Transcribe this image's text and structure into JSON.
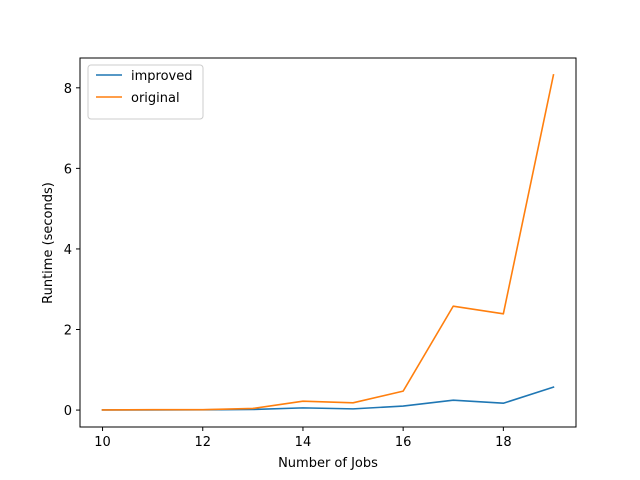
{
  "chart_data": {
    "type": "line",
    "title": "",
    "xlabel": "Number of Jobs",
    "ylabel": "Runtime (seconds)",
    "x": [
      10,
      11,
      12,
      13,
      14,
      15,
      16,
      17,
      18,
      19
    ],
    "series": [
      {
        "name": "improved",
        "color": "#1f77b4",
        "values": [
          0.003,
          0.004,
          0.006,
          0.015,
          0.055,
          0.03,
          0.1,
          0.245,
          0.17,
          0.57
        ]
      },
      {
        "name": "original",
        "color": "#ff7f0e",
        "values": [
          0.004,
          0.01,
          0.01,
          0.04,
          0.22,
          0.18,
          0.47,
          2.58,
          2.39,
          8.32
        ]
      }
    ],
    "xlim": [
      9.55,
      19.45
    ],
    "ylim": [
      -0.42,
      8.74
    ],
    "xticks": [
      10,
      12,
      14,
      16,
      18
    ],
    "xtick_labels": [
      "10",
      "12",
      "14",
      "16",
      "18"
    ],
    "yticks": [
      0,
      2,
      4,
      6,
      8
    ],
    "ytick_labels": [
      "0",
      "2",
      "4",
      "6",
      "8"
    ],
    "grid": false,
    "legend_position": "upper-left"
  }
}
